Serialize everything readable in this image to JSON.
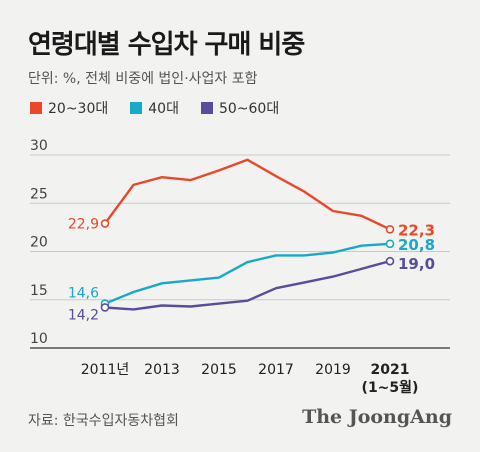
{
  "title": "연령대별 수입차 구매 비중",
  "subtitle": "단위: %, 전체 비중에 법인·사업자 포함",
  "source": "자료: 한국수입자동차협회",
  "brand": "The JoongAng",
  "chart_data": {
    "type": "line",
    "x": [
      2011,
      2012,
      2013,
      2014,
      2015,
      2016,
      2017,
      2018,
      2019,
      2020,
      2021
    ],
    "x_tick_values": [
      2011,
      2013,
      2015,
      2017,
      2019,
      2021
    ],
    "x_tick_labels": [
      "2011년",
      "2013",
      "2015",
      "2017",
      "2019",
      "2021"
    ],
    "x_last_note": "(1~5월)",
    "ylim": [
      10,
      30
    ],
    "y_ticks": [
      10,
      15,
      20,
      25,
      30
    ],
    "grid": true,
    "legend_position": "top-left",
    "series": [
      {
        "name": "20~30대",
        "color": "#e8492a",
        "values": [
          22.9,
          26.9,
          27.7,
          27.4,
          28.4,
          29.5,
          27.8,
          26.2,
          24.2,
          23.7,
          22.3
        ],
        "start_label": "22,9",
        "end_label": "22,3"
      },
      {
        "name": "40대",
        "color": "#1aa8c8",
        "values": [
          14.6,
          15.8,
          16.7,
          17.0,
          17.3,
          18.9,
          19.6,
          19.6,
          19.9,
          20.6,
          20.8
        ],
        "start_label": "14,6",
        "end_label": "20,8"
      },
      {
        "name": "50~60대",
        "color": "#5b4b9b",
        "values": [
          14.2,
          14.0,
          14.4,
          14.3,
          14.6,
          14.9,
          16.2,
          16.8,
          17.4,
          18.2,
          19.0
        ],
        "start_label": "14,2",
        "end_label": "19,0"
      }
    ]
  }
}
